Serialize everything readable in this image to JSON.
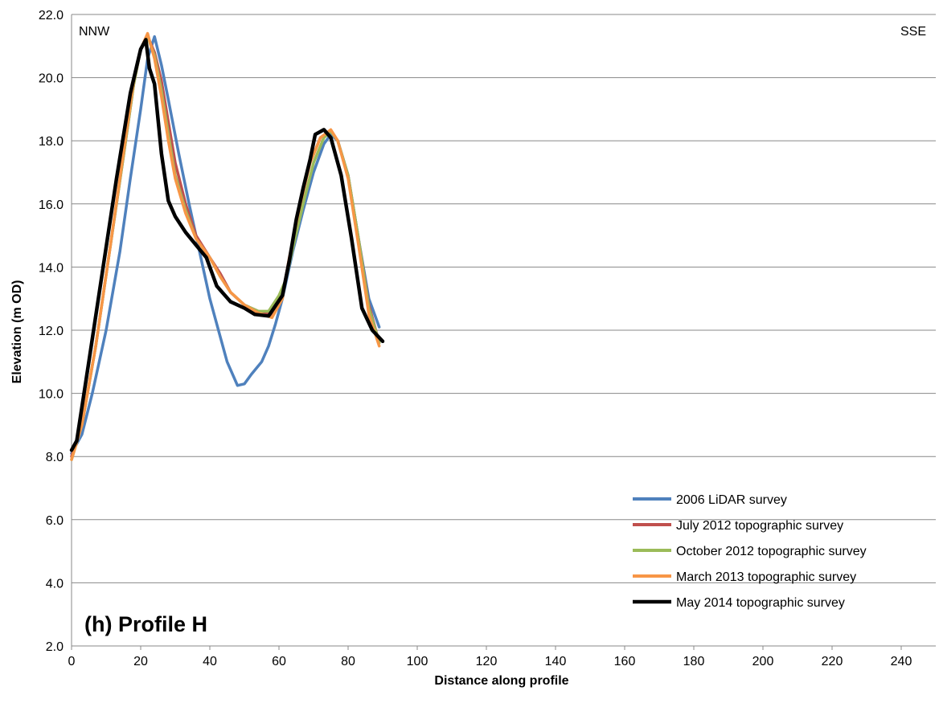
{
  "chart_data": {
    "type": "line",
    "title": "",
    "xlabel": "Distance along profile",
    "ylabel": "Elevation (m OD)",
    "xlim": [
      0,
      250
    ],
    "ylim": [
      2.0,
      22.0
    ],
    "x_ticks": [
      0,
      20,
      40,
      60,
      80,
      100,
      120,
      140,
      160,
      180,
      200,
      220,
      240
    ],
    "y_ticks": [
      "2.0",
      "4.0",
      "6.0",
      "8.0",
      "10.0",
      "12.0",
      "14.0",
      "16.0",
      "18.0",
      "20.0",
      "22.0"
    ],
    "grid": "horizontal",
    "legend_position": "bottom-right",
    "annotations": {
      "left_direction": "NNW",
      "right_direction": "SSE",
      "panel_label": "(h) Profile H"
    },
    "series": [
      {
        "name": "2006 LiDAR survey",
        "color": "#4f81bd",
        "points": [
          [
            0,
            8.1
          ],
          [
            3,
            8.7
          ],
          [
            6,
            10.0
          ],
          [
            10,
            12.0
          ],
          [
            14,
            14.5
          ],
          [
            17,
            16.8
          ],
          [
            20,
            19.0
          ],
          [
            22,
            20.6
          ],
          [
            24,
            21.3
          ],
          [
            26,
            20.4
          ],
          [
            28,
            19.3
          ],
          [
            31,
            17.6
          ],
          [
            34,
            16.0
          ],
          [
            37,
            14.5
          ],
          [
            40,
            13.0
          ],
          [
            43,
            11.8
          ],
          [
            45,
            11.0
          ],
          [
            47,
            10.5
          ],
          [
            48,
            10.25
          ],
          [
            50,
            10.3
          ],
          [
            52,
            10.6
          ],
          [
            55,
            11.0
          ],
          [
            57,
            11.5
          ],
          [
            59,
            12.2
          ],
          [
            61,
            13.0
          ],
          [
            64,
            14.5
          ],
          [
            67,
            15.8
          ],
          [
            70,
            17.0
          ],
          [
            73,
            17.9
          ],
          [
            75,
            18.2
          ],
          [
            77,
            18.0
          ],
          [
            80,
            16.9
          ],
          [
            83,
            14.9
          ],
          [
            86,
            13.0
          ],
          [
            89,
            12.1
          ]
        ]
      },
      {
        "name": "July 2012 topographic survey",
        "color": "#c0504d",
        "points": [
          [
            0,
            8.0
          ],
          [
            3,
            9.0
          ],
          [
            7,
            11.5
          ],
          [
            11,
            14.5
          ],
          [
            15,
            17.5
          ],
          [
            18,
            19.8
          ],
          [
            20,
            20.9
          ],
          [
            22,
            21.3
          ],
          [
            24,
            20.8
          ],
          [
            26,
            19.9
          ],
          [
            28,
            18.6
          ],
          [
            30,
            17.3
          ],
          [
            33,
            16.0
          ],
          [
            36,
            15.0
          ],
          [
            40,
            14.3
          ],
          [
            43,
            13.8
          ],
          [
            46,
            13.2
          ],
          [
            50,
            12.8
          ],
          [
            54,
            12.6
          ],
          [
            58,
            12.5
          ],
          [
            61,
            13.1
          ],
          [
            63,
            14.3
          ],
          [
            66,
            15.9
          ],
          [
            69,
            17.3
          ],
          [
            72,
            18.1
          ],
          [
            75,
            18.3
          ],
          [
            77,
            18.0
          ],
          [
            80,
            16.9
          ],
          [
            83,
            14.9
          ],
          [
            86,
            12.8
          ],
          [
            89,
            11.6
          ]
        ]
      },
      {
        "name": "October 2012 topographic survey",
        "color": "#9bbb59",
        "points": [
          [
            0,
            7.9
          ],
          [
            3,
            9.0
          ],
          [
            7,
            11.5
          ],
          [
            11,
            14.5
          ],
          [
            15,
            17.5
          ],
          [
            18,
            19.8
          ],
          [
            20,
            20.9
          ],
          [
            22,
            21.3
          ],
          [
            24,
            20.7
          ],
          [
            26,
            19.6
          ],
          [
            28,
            18.2
          ],
          [
            30,
            16.9
          ],
          [
            33,
            15.8
          ],
          [
            36,
            14.9
          ],
          [
            40,
            14.3
          ],
          [
            43,
            13.7
          ],
          [
            46,
            13.2
          ],
          [
            50,
            12.8
          ],
          [
            54,
            12.6
          ],
          [
            57,
            12.6
          ],
          [
            60,
            13.1
          ],
          [
            62,
            13.6
          ],
          [
            64,
            14.6
          ],
          [
            67,
            16.0
          ],
          [
            70,
            17.3
          ],
          [
            73,
            18.1
          ],
          [
            75,
            18.3
          ],
          [
            77,
            18.0
          ],
          [
            80,
            16.9
          ],
          [
            83,
            14.9
          ],
          [
            86,
            12.7
          ],
          [
            89,
            11.6
          ]
        ]
      },
      {
        "name": "March 2013 topographic survey",
        "color": "#f79646",
        "points": [
          [
            0,
            7.9
          ],
          [
            3,
            9.0
          ],
          [
            7,
            11.5
          ],
          [
            11,
            14.5
          ],
          [
            15,
            17.6
          ],
          [
            18,
            19.9
          ],
          [
            20,
            20.9
          ],
          [
            22,
            21.4
          ],
          [
            24,
            20.6
          ],
          [
            26,
            19.4
          ],
          [
            28,
            18.0
          ],
          [
            30,
            16.8
          ],
          [
            33,
            15.7
          ],
          [
            36,
            14.9
          ],
          [
            40,
            14.3
          ],
          [
            43,
            13.7
          ],
          [
            46,
            13.2
          ],
          [
            50,
            12.8
          ],
          [
            54,
            12.55
          ],
          [
            58,
            12.4
          ],
          [
            61,
            13.0
          ],
          [
            63,
            14.3
          ],
          [
            66,
            15.9
          ],
          [
            69,
            17.3
          ],
          [
            72,
            18.1
          ],
          [
            75,
            18.35
          ],
          [
            77,
            18.0
          ],
          [
            80,
            16.8
          ],
          [
            83,
            14.7
          ],
          [
            86,
            12.5
          ],
          [
            89,
            11.5
          ]
        ]
      },
      {
        "name": "May 2014 topographic survey",
        "color": "#000000",
        "points": [
          [
            0,
            8.2
          ],
          [
            1.5,
            8.5
          ],
          [
            5,
            11.0
          ],
          [
            9,
            13.9
          ],
          [
            13,
            16.8
          ],
          [
            17,
            19.5
          ],
          [
            20,
            20.9
          ],
          [
            21.5,
            21.2
          ],
          [
            22.5,
            20.3
          ],
          [
            24,
            19.8
          ],
          [
            26,
            17.6
          ],
          [
            28,
            16.1
          ],
          [
            30,
            15.6
          ],
          [
            33,
            15.1
          ],
          [
            36,
            14.7
          ],
          [
            39,
            14.3
          ],
          [
            42,
            13.4
          ],
          [
            46,
            12.9
          ],
          [
            50,
            12.7
          ],
          [
            53,
            12.5
          ],
          [
            57,
            12.45
          ],
          [
            61,
            13.1
          ],
          [
            63,
            14.2
          ],
          [
            65,
            15.5
          ],
          [
            67,
            16.5
          ],
          [
            69,
            17.4
          ],
          [
            70.5,
            18.2
          ],
          [
            73,
            18.35
          ],
          [
            75,
            18.1
          ],
          [
            78,
            16.9
          ],
          [
            81,
            14.9
          ],
          [
            84,
            12.7
          ],
          [
            87,
            12.0
          ],
          [
            90,
            11.65
          ]
        ]
      }
    ]
  }
}
